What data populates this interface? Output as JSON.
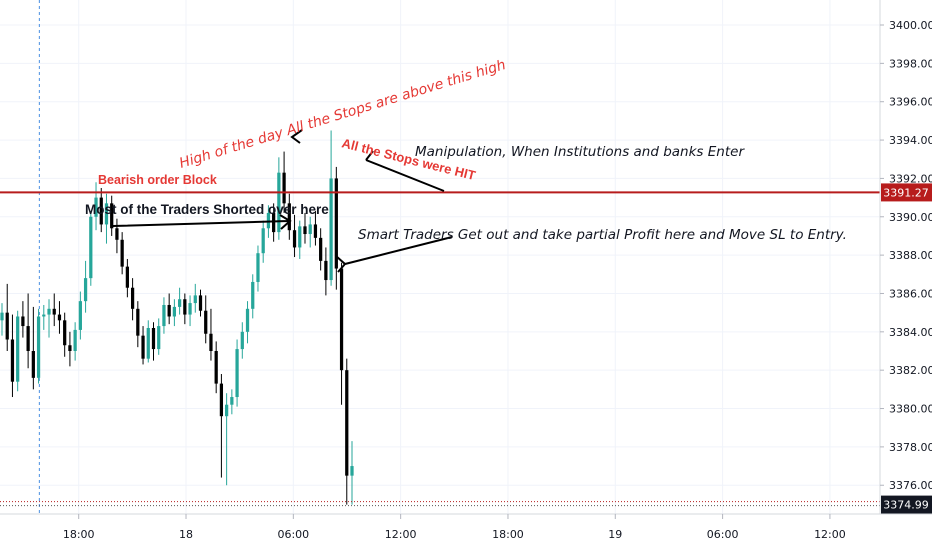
{
  "chart_data": {
    "type": "candlestick",
    "title": "",
    "y_range": [
      3374.5,
      3401.2
    ],
    "y_ticks": [
      "3376.00",
      "3378.00",
      "3380.00",
      "3382.00",
      "3384.00",
      "3386.00",
      "3388.00",
      "3390.00",
      "3392.00",
      "3394.00",
      "3396.00",
      "3398.00",
      "3400.00"
    ],
    "x_ticks": [
      "18:00",
      "18",
      "06:00",
      "12:00",
      "18:00",
      "19",
      "06:00",
      "12:00"
    ],
    "x_tick_hours": [
      18,
      24,
      30,
      36,
      42,
      48,
      54,
      60
    ],
    "x_range_hours": [
      13.6,
      62.8
    ],
    "session_divider_hour": 15.8,
    "resistance_price": 3391.27,
    "last_price": 3374.99,
    "bullish_color": "#26a69a",
    "bearish_color": "#000000",
    "level_color": "#b71c1c",
    "annotation_color": "#e53935",
    "candles": [
      {
        "o": 3384.6,
        "h": 3385.5,
        "l": 3383.8,
        "c": 3385.0
      },
      {
        "o": 3385.0,
        "h": 3386.5,
        "l": 3383.0,
        "c": 3383.6
      },
      {
        "o": 3383.6,
        "h": 3384.9,
        "l": 3380.6,
        "c": 3381.4
      },
      {
        "o": 3381.4,
        "h": 3385.1,
        "l": 3380.9,
        "c": 3384.8
      },
      {
        "o": 3384.8,
        "h": 3385.6,
        "l": 3383.7,
        "c": 3384.3
      },
      {
        "o": 3384.3,
        "h": 3386.0,
        "l": 3382.1,
        "c": 3383.0
      },
      {
        "o": 3383.0,
        "h": 3385.3,
        "l": 3381.0,
        "c": 3381.6
      },
      {
        "o": 3381.6,
        "h": 3385.2,
        "l": 3381.3,
        "c": 3384.8
      },
      {
        "o": 3384.8,
        "h": 3385.4,
        "l": 3384.1,
        "c": 3384.9
      },
      {
        "o": 3384.9,
        "h": 3385.7,
        "l": 3383.7,
        "c": 3385.2
      },
      {
        "o": 3385.2,
        "h": 3386.0,
        "l": 3384.3,
        "c": 3384.9
      },
      {
        "o": 3384.9,
        "h": 3385.6,
        "l": 3383.9,
        "c": 3384.6
      },
      {
        "o": 3384.6,
        "h": 3385.0,
        "l": 3382.7,
        "c": 3383.3
      },
      {
        "o": 3383.3,
        "h": 3384.0,
        "l": 3382.2,
        "c": 3383.0
      },
      {
        "o": 3383.0,
        "h": 3384.5,
        "l": 3382.5,
        "c": 3384.1
      },
      {
        "o": 3384.1,
        "h": 3386.1,
        "l": 3383.6,
        "c": 3385.6
      },
      {
        "o": 3385.6,
        "h": 3387.7,
        "l": 3385.0,
        "c": 3386.8
      },
      {
        "o": 3386.8,
        "h": 3390.3,
        "l": 3386.4,
        "c": 3390.0
      },
      {
        "o": 3390.0,
        "h": 3391.8,
        "l": 3389.3,
        "c": 3391.0
      },
      {
        "o": 3391.0,
        "h": 3391.5,
        "l": 3389.2,
        "c": 3389.6
      },
      {
        "o": 3389.6,
        "h": 3391.2,
        "l": 3388.6,
        "c": 3390.7
      },
      {
        "o": 3390.7,
        "h": 3391.1,
        "l": 3389.0,
        "c": 3389.4
      },
      {
        "o": 3389.4,
        "h": 3389.9,
        "l": 3388.1,
        "c": 3388.8
      },
      {
        "o": 3388.8,
        "h": 3389.2,
        "l": 3387.0,
        "c": 3387.4
      },
      {
        "o": 3387.4,
        "h": 3387.8,
        "l": 3385.8,
        "c": 3386.3
      },
      {
        "o": 3386.3,
        "h": 3386.8,
        "l": 3384.6,
        "c": 3385.2
      },
      {
        "o": 3385.2,
        "h": 3385.6,
        "l": 3383.2,
        "c": 3383.8
      },
      {
        "o": 3383.8,
        "h": 3384.3,
        "l": 3382.3,
        "c": 3382.6
      },
      {
        "o": 3382.6,
        "h": 3384.6,
        "l": 3382.4,
        "c": 3384.2
      },
      {
        "o": 3384.2,
        "h": 3384.5,
        "l": 3382.5,
        "c": 3383.1
      },
      {
        "o": 3383.1,
        "h": 3384.7,
        "l": 3382.8,
        "c": 3384.3
      },
      {
        "o": 3384.3,
        "h": 3385.8,
        "l": 3383.9,
        "c": 3385.4
      },
      {
        "o": 3385.4,
        "h": 3386.0,
        "l": 3384.4,
        "c": 3384.8
      },
      {
        "o": 3384.8,
        "h": 3385.7,
        "l": 3384.3,
        "c": 3385.3
      },
      {
        "o": 3385.3,
        "h": 3386.3,
        "l": 3384.9,
        "c": 3385.7
      },
      {
        "o": 3385.7,
        "h": 3386.0,
        "l": 3384.4,
        "c": 3384.9
      },
      {
        "o": 3384.9,
        "h": 3385.9,
        "l": 3384.3,
        "c": 3385.5
      },
      {
        "o": 3385.5,
        "h": 3386.5,
        "l": 3385.0,
        "c": 3385.9
      },
      {
        "o": 3385.9,
        "h": 3386.2,
        "l": 3384.8,
        "c": 3385.1
      },
      {
        "o": 3385.1,
        "h": 3385.9,
        "l": 3383.4,
        "c": 3383.9
      },
      {
        "o": 3383.9,
        "h": 3385.2,
        "l": 3382.5,
        "c": 3383.0
      },
      {
        "o": 3383.0,
        "h": 3383.5,
        "l": 3380.8,
        "c": 3381.3
      },
      {
        "o": 3381.3,
        "h": 3381.8,
        "l": 3376.4,
        "c": 3379.6
      },
      {
        "o": 3379.6,
        "h": 3380.8,
        "l": 3376.0,
        "c": 3380.2
      },
      {
        "o": 3380.2,
        "h": 3381.0,
        "l": 3379.7,
        "c": 3380.6
      },
      {
        "o": 3380.6,
        "h": 3383.6,
        "l": 3380.1,
        "c": 3383.1
      },
      {
        "o": 3383.1,
        "h": 3384.5,
        "l": 3382.6,
        "c": 3384.0
      },
      {
        "o": 3384.0,
        "h": 3385.6,
        "l": 3383.4,
        "c": 3385.2
      },
      {
        "o": 3385.2,
        "h": 3387.0,
        "l": 3384.7,
        "c": 3386.6
      },
      {
        "o": 3386.6,
        "h": 3388.5,
        "l": 3386.1,
        "c": 3388.1
      },
      {
        "o": 3388.1,
        "h": 3389.8,
        "l": 3387.6,
        "c": 3389.4
      },
      {
        "o": 3389.4,
        "h": 3390.6,
        "l": 3388.9,
        "c": 3390.2
      },
      {
        "o": 3390.2,
        "h": 3390.7,
        "l": 3388.7,
        "c": 3389.2
      },
      {
        "o": 3389.2,
        "h": 3393.1,
        "l": 3388.8,
        "c": 3392.3
      },
      {
        "o": 3392.3,
        "h": 3393.4,
        "l": 3390.2,
        "c": 3390.7
      },
      {
        "o": 3390.7,
        "h": 3391.2,
        "l": 3388.8,
        "c": 3389.3
      },
      {
        "o": 3389.3,
        "h": 3390.1,
        "l": 3387.9,
        "c": 3388.4
      },
      {
        "o": 3388.4,
        "h": 3389.8,
        "l": 3387.8,
        "c": 3389.5
      },
      {
        "o": 3389.5,
        "h": 3390.2,
        "l": 3388.6,
        "c": 3389.1
      },
      {
        "o": 3389.1,
        "h": 3390.0,
        "l": 3388.4,
        "c": 3389.6
      },
      {
        "o": 3389.6,
        "h": 3390.3,
        "l": 3388.5,
        "c": 3388.9
      },
      {
        "o": 3388.9,
        "h": 3389.4,
        "l": 3387.2,
        "c": 3387.7
      },
      {
        "o": 3387.7,
        "h": 3388.4,
        "l": 3385.9,
        "c": 3386.7
      },
      {
        "o": 3386.7,
        "h": 3394.5,
        "l": 3386.4,
        "c": 3392.0
      },
      {
        "o": 3392.0,
        "h": 3392.6,
        "l": 3386.2,
        "c": 3387.3
      },
      {
        "o": 3387.3,
        "h": 3387.6,
        "l": 3380.2,
        "c": 3382.0
      },
      {
        "o": 3382.0,
        "h": 3382.6,
        "l": 3374.99,
        "c": 3376.5
      },
      {
        "o": 3376.5,
        "h": 3378.3,
        "l": 3374.99,
        "c": 3377.0
      }
    ],
    "annotations": [
      {
        "id": "high-of-day",
        "text": "High of the day All the Stops are above this high",
        "color": "#e53935",
        "italic": true,
        "rotate": -17
      },
      {
        "id": "bearish-ob",
        "text": "Bearish order Block",
        "color": "#e53935",
        "bold": true
      },
      {
        "id": "all-stops-hit",
        "text": "All the Stops were HIT",
        "color": "#e53935",
        "bold": true,
        "rotate": 14
      },
      {
        "id": "manipulation",
        "text": "Manipulation, When Institutions and banks Enter",
        "color": "#131722",
        "italic": true
      },
      {
        "id": "most-traders",
        "text": "Most of the Traders Shorted over here",
        "color": "#131722",
        "bold": true
      },
      {
        "id": "smart-traders",
        "text": "Smart Traders Get out and take partial Profit here and Move SL to Entry.",
        "color": "#131722",
        "italic": true
      }
    ]
  }
}
